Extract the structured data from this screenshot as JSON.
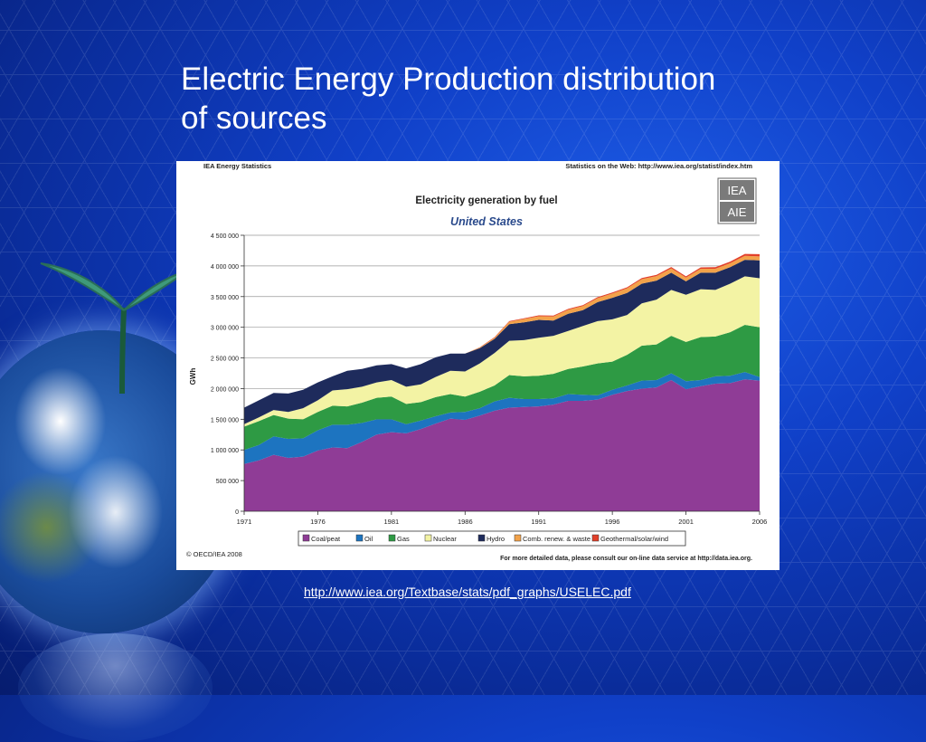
{
  "slide": {
    "title_line1": "Electric Energy Production distribution",
    "title_line2": "of sources",
    "link": "http://www.iea.org/Textbase/stats/pdf_graphs/USELEC.pdf"
  },
  "chart_header": {
    "source_left": "IEA Energy Statistics",
    "source_right": "Statistics on the Web: http://www.iea.org/statist/index.htm",
    "logo_text_top": "IEA",
    "logo_text_bottom": "AIE",
    "footer_left": "© OECD/IEA 2008",
    "footer_right": "For more detailed data, please consult our on-line data service at http://data.iea.org."
  },
  "colors": {
    "coal": "#8f3c96",
    "oil": "#1d74c0",
    "gas": "#2e9a44",
    "nuclear": "#f3f3a4",
    "hydro": "#1e2b5c",
    "comb": "#f2a24a",
    "geo": "#e2402a"
  },
  "chart_data": {
    "type": "area",
    "stacked": true,
    "title": "Electricity generation by fuel",
    "subtitle": "United States",
    "ylabel": "GWh",
    "ylim": [
      0,
      4500000
    ],
    "yticks": [
      0,
      500000,
      1000000,
      1500000,
      2000000,
      2500000,
      3000000,
      3500000,
      4000000,
      4500000
    ],
    "ytick_labels": [
      "0",
      "500 000",
      "1 000 000",
      "1 500 000",
      "2 000 000",
      "2 500 000",
      "3 000 000",
      "3 500 000",
      "4 000 000",
      "4 500 000"
    ],
    "xticks": [
      1971,
      1976,
      1981,
      1986,
      1991,
      1996,
      2001,
      2006
    ],
    "x": [
      1971,
      1972,
      1973,
      1974,
      1975,
      1976,
      1977,
      1978,
      1979,
      1980,
      1981,
      1982,
      1983,
      1984,
      1985,
      1986,
      1987,
      1988,
      1989,
      1990,
      1991,
      1992,
      1993,
      1994,
      1995,
      1996,
      1997,
      1998,
      1999,
      2000,
      2001,
      2002,
      2003,
      2004,
      2005,
      2006
    ],
    "legend_position": "bottom",
    "series": [
      {
        "name": "Coal/peat",
        "color_key": "coal",
        "values": [
          770000,
          830000,
          920000,
          870000,
          890000,
          990000,
          1040000,
          1030000,
          1130000,
          1250000,
          1290000,
          1270000,
          1340000,
          1430000,
          1510000,
          1490000,
          1560000,
          1640000,
          1690000,
          1700000,
          1710000,
          1740000,
          1800000,
          1800000,
          1820000,
          1900000,
          1960000,
          2000000,
          2020000,
          2140000,
          1990000,
          2040000,
          2080000,
          2090000,
          2150000,
          2130000
        ]
      },
      {
        "name": "Oil",
        "color_key": "oil",
        "values": [
          230000,
          250000,
          300000,
          310000,
          300000,
          330000,
          370000,
          380000,
          310000,
          250000,
          210000,
          150000,
          140000,
          120000,
          100000,
          130000,
          120000,
          150000,
          160000,
          130000,
          120000,
          100000,
          110000,
          100000,
          70000,
          80000,
          90000,
          130000,
          120000,
          110000,
          130000,
          100000,
          120000,
          120000,
          120000,
          60000
        ]
      },
      {
        "name": "Gas",
        "color_key": "gas",
        "values": [
          380000,
          390000,
          350000,
          330000,
          310000,
          300000,
          310000,
          300000,
          330000,
          350000,
          370000,
          330000,
          300000,
          310000,
          300000,
          250000,
          270000,
          260000,
          370000,
          370000,
          380000,
          400000,
          410000,
          460000,
          520000,
          460000,
          500000,
          570000,
          580000,
          610000,
          640000,
          700000,
          650000,
          710000,
          770000,
          810000
        ]
      },
      {
        "name": "Nuclear",
        "color_key": "nuclear",
        "values": [
          40000,
          60000,
          80000,
          110000,
          180000,
          190000,
          250000,
          280000,
          260000,
          250000,
          270000,
          280000,
          290000,
          330000,
          380000,
          410000,
          460000,
          530000,
          560000,
          590000,
          620000,
          620000,
          620000,
          660000,
          690000,
          690000,
          650000,
          690000,
          730000,
          750000,
          770000,
          780000,
          760000,
          790000,
          790000,
          800000
        ]
      },
      {
        "name": "Hydro",
        "color_key": "hydro",
        "values": [
          270000,
          280000,
          280000,
          300000,
          300000,
          290000,
          230000,
          300000,
          290000,
          280000,
          260000,
          300000,
          330000,
          320000,
          280000,
          290000,
          250000,
          230000,
          270000,
          290000,
          290000,
          250000,
          280000,
          260000,
          310000,
          350000,
          360000,
          320000,
          310000,
          280000,
          220000,
          270000,
          280000,
          270000,
          270000,
          290000
        ]
      },
      {
        "name": "Comb. renew. & waste",
        "color_key": "comb",
        "values": [
          0,
          0,
          0,
          0,
          0,
          0,
          0,
          0,
          0,
          0,
          0,
          0,
          0,
          0,
          0,
          0,
          10000,
          20000,
          40000,
          55000,
          60000,
          65000,
          65000,
          65000,
          65000,
          70000,
          75000,
          75000,
          75000,
          70000,
          60000,
          65000,
          65000,
          65000,
          65000,
          65000
        ]
      },
      {
        "name": "Geothermal/solar/wind",
        "color_key": "geo",
        "values": [
          0,
          0,
          0,
          0,
          0,
          0,
          0,
          0,
          0,
          0,
          0,
          0,
          0,
          0,
          0,
          0,
          5000,
          8000,
          10000,
          12000,
          15000,
          15000,
          15000,
          16000,
          16000,
          16000,
          17000,
          18000,
          20000,
          21000,
          20000,
          22000,
          24000,
          25000,
          30000,
          37000
        ]
      }
    ]
  }
}
